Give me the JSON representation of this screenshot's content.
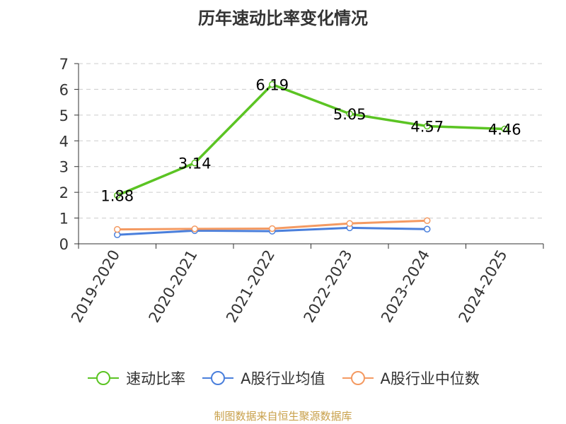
{
  "title": "历年速动比率变化情况",
  "source": "制图数据来自恒生聚源数据库",
  "colors": {
    "series": [
      "#5bc423",
      "#4a7fdc",
      "#f49a62"
    ],
    "axis": "#333333",
    "grid": "#cccccc",
    "source": "#c8a04a"
  },
  "chart_data": {
    "type": "line",
    "title": "历年速动比率变化情况",
    "xlabel": "",
    "ylabel": "",
    "ylim": [
      0,
      7
    ],
    "yticks": [
      0,
      1,
      2,
      3,
      4,
      5,
      6,
      7
    ],
    "grid": true,
    "legend_position": "bottom",
    "categories": [
      "2019-2020",
      "2020-2021",
      "2021-2022",
      "2022-2023",
      "2023-2024",
      "2024-2025"
    ],
    "series": [
      {
        "name": "速动比率",
        "values": [
          1.88,
          3.14,
          6.19,
          5.05,
          4.57,
          4.46
        ],
        "labels": [
          "1.88",
          "3.14",
          "6.19",
          "5.05",
          "4.57",
          "4.46"
        ]
      },
      {
        "name": "A股行业均值",
        "values": [
          0.35,
          0.51,
          0.49,
          0.62,
          0.57,
          null
        ]
      },
      {
        "name": "A股行业中位数",
        "values": [
          0.56,
          0.58,
          0.59,
          0.79,
          0.9,
          null
        ]
      }
    ]
  }
}
